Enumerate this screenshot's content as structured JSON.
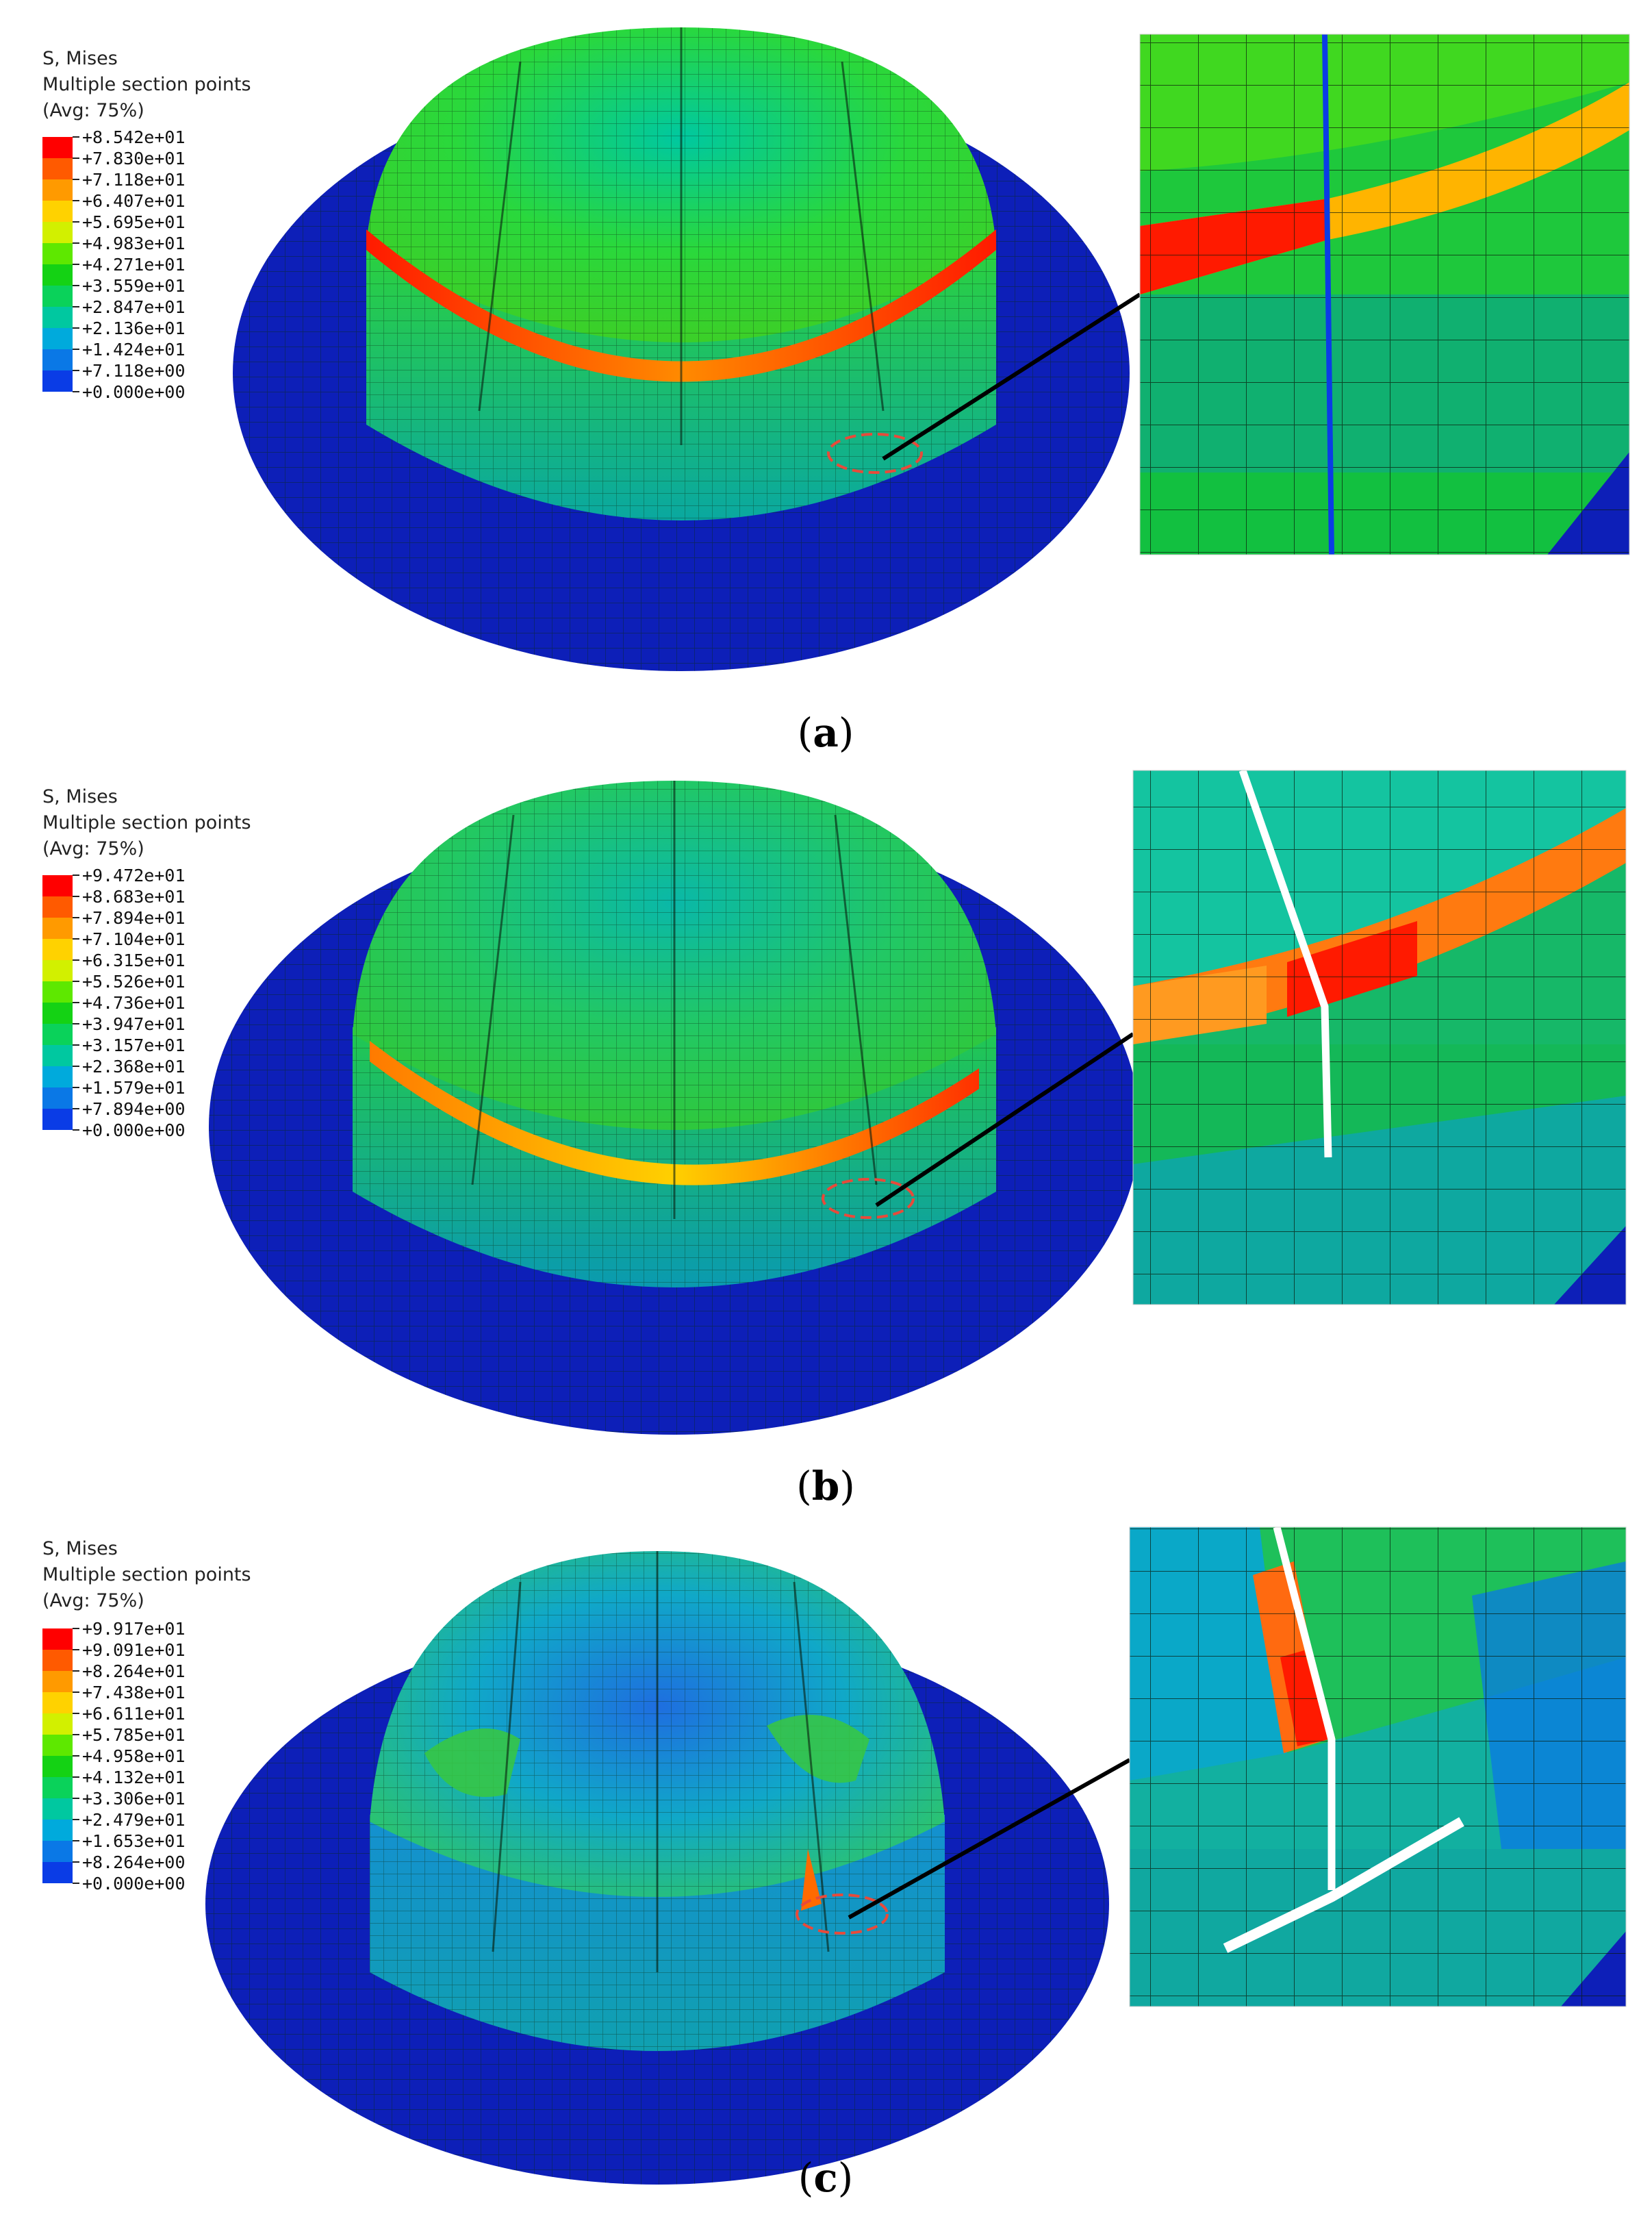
{
  "panels": [
    {
      "caption_letter": "a",
      "legend": {
        "title": "S, Mises",
        "subtitle": "Multiple section points",
        "avg": "(Avg: 75%)",
        "values": [
          "+8.542e+01",
          "+7.830e+01",
          "+7.118e+01",
          "+6.407e+01",
          "+5.695e+01",
          "+4.983e+01",
          "+4.271e+01",
          "+3.559e+01",
          "+2.847e+01",
          "+2.136e+01",
          "+1.424e+01",
          "+7.118e+00",
          "+0.000e+00"
        ]
      }
    },
    {
      "caption_letter": "b",
      "legend": {
        "title": "S, Mises",
        "subtitle": "Multiple section points",
        "avg": "(Avg: 75%)",
        "values": [
          "+9.472e+01",
          "+8.683e+01",
          "+7.894e+01",
          "+7.104e+01",
          "+6.315e+01",
          "+5.526e+01",
          "+4.736e+01",
          "+3.947e+01",
          "+3.157e+01",
          "+2.368e+01",
          "+1.579e+01",
          "+7.894e+00",
          "+0.000e+00"
        ]
      }
    },
    {
      "caption_letter": "c",
      "legend": {
        "title": "S, Mises",
        "subtitle": "Multiple section points",
        "avg": "(Avg: 75%)",
        "values": [
          "+9.917e+01",
          "+9.091e+01",
          "+8.264e+01",
          "+7.438e+01",
          "+6.611e+01",
          "+5.785e+01",
          "+4.958e+01",
          "+4.132e+01",
          "+3.306e+01",
          "+2.479e+01",
          "+1.653e+01",
          "+8.264e+00",
          "+0.000e+00"
        ]
      }
    }
  ],
  "colors": {
    "contour_scale": [
      "#ff0000",
      "#ff5a00",
      "#ff9a00",
      "#ffd200",
      "#d2f000",
      "#5ee800",
      "#14d214",
      "#0ad25a",
      "#00c8a0",
      "#00aadc",
      "#0a78e6",
      "#0a3ce6",
      "#0000c8"
    ],
    "flange": "#0d1fb8",
    "highlight_circle": "#e84a3a"
  }
}
